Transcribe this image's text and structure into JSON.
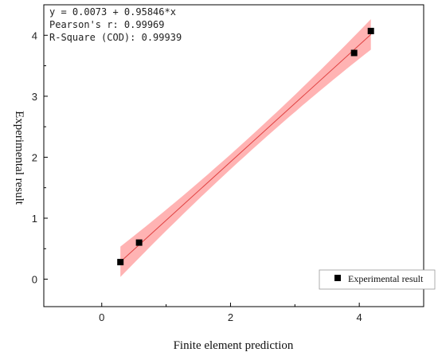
{
  "chart_data": {
    "type": "scatter",
    "xlabel": "Finite element prediction",
    "ylabel": "Experimental result",
    "xlim": [
      -0.9,
      5.0
    ],
    "ylim": [
      -0.45,
      4.5
    ],
    "x_ticks": [
      0,
      2,
      4
    ],
    "y_ticks": [
      0,
      1,
      2,
      3,
      4
    ],
    "series": [
      {
        "name": "Experimental result",
        "marker": "square",
        "color": "#000000",
        "points": [
          {
            "x": 0.29,
            "y": 0.28
          },
          {
            "x": 0.58,
            "y": 0.6
          },
          {
            "x": 3.92,
            "y": 3.71
          },
          {
            "x": 4.18,
            "y": 4.07
          }
        ]
      }
    ],
    "fit": {
      "intercept": 0.0073,
      "slope": 0.95846,
      "x_range": [
        0.29,
        4.18
      ],
      "line_color": "#e04040",
      "band_color": "#ff9a9a",
      "band_halfwidth_ends": 0.25,
      "band_halfwidth_middle": 0.12
    },
    "annotation": [
      "y = 0.0073 + 0.95846*x",
      "Pearson's r: 0.99969",
      "R-Square (COD): 0.99939"
    ],
    "legend": {
      "position": "bottom-right",
      "label": "Experimental result"
    },
    "grid": false
  }
}
